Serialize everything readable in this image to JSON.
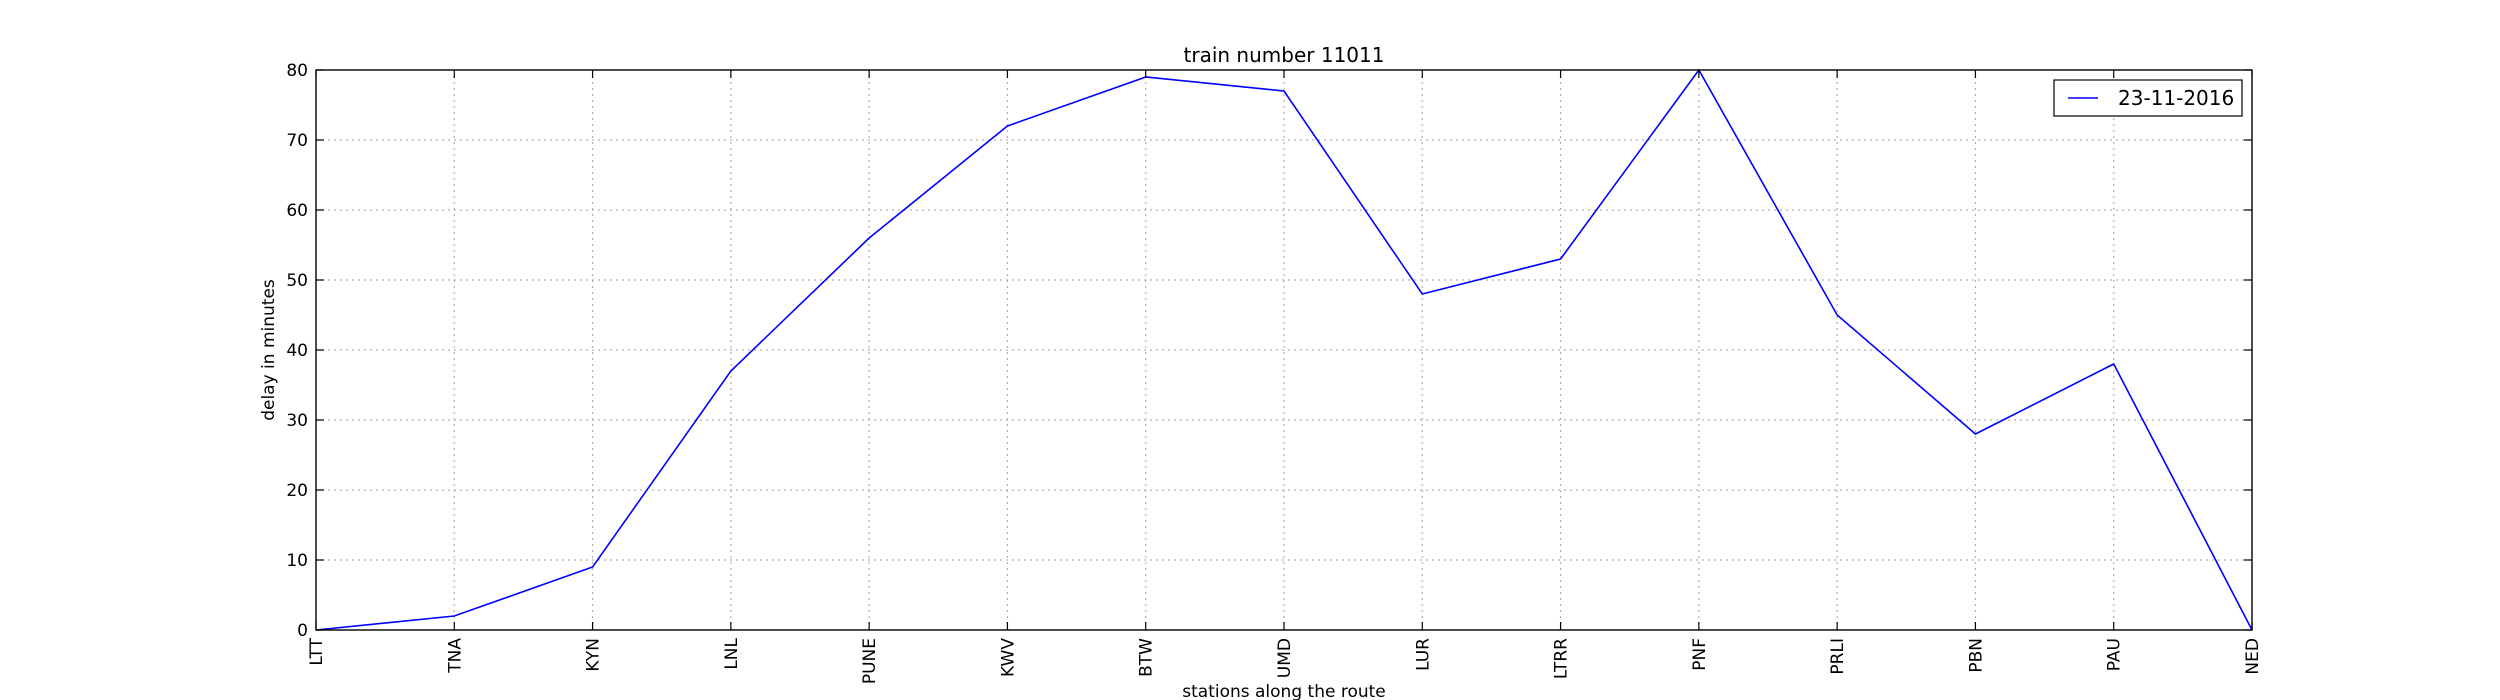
{
  "chart_data": {
    "type": "line",
    "title": "train number 11011",
    "xlabel": "stations along the route",
    "ylabel": "delay in minutes",
    "categories": [
      "LTT",
      "TNA",
      "KYN",
      "LNL",
      "PUNE",
      "KWV",
      "BTW",
      "UMD",
      "LUR",
      "LTRR",
      "PNF",
      "PRLI",
      "PBN",
      "PAU",
      "NED"
    ],
    "series": [
      {
        "name": "23-11-2016",
        "values": [
          0,
          2,
          9,
          37,
          56,
          72,
          79,
          77,
          48,
          53,
          80,
          45,
          28,
          38,
          0
        ],
        "color": "#0000ff"
      }
    ],
    "ylim": [
      0,
      80
    ],
    "yticks": [
      "0",
      "10",
      "20",
      "30",
      "40",
      "50",
      "60",
      "70",
      "80"
    ],
    "grid": true,
    "legend_position": "top-right"
  }
}
